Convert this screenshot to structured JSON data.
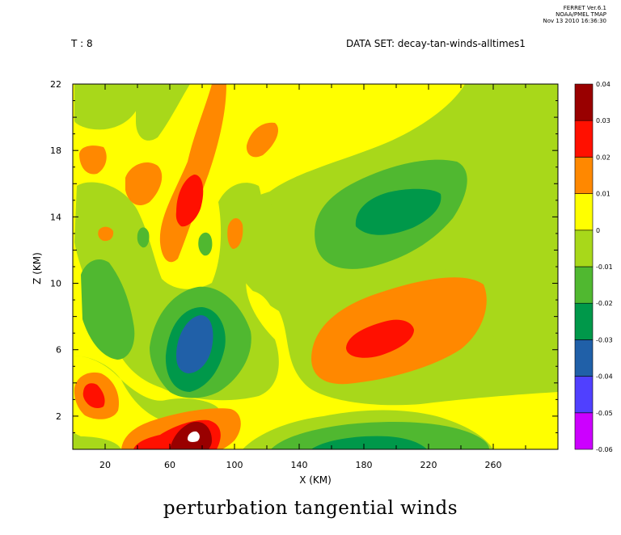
{
  "stamp": {
    "line1": "FERRET Ver.6.1",
    "line2": "NOAA/PMEL TMAP",
    "line3": "Nov 13 2010 16:36:30"
  },
  "header": {
    "time_label": "T : 8",
    "dataset_label": "DATA SET: decay-tan-winds-alltimes1"
  },
  "chart_data": {
    "type": "heatmap",
    "title": "perturbation tangential winds",
    "xlabel": "X (KM)",
    "ylabel": "Z (KM)",
    "xlim": [
      0,
      300
    ],
    "ylim": [
      0,
      22
    ],
    "xticks": [
      20,
      60,
      100,
      140,
      180,
      220,
      260
    ],
    "yticks": [
      2,
      6,
      10,
      14,
      18,
      22
    ],
    "colorbar": {
      "levels": [
        -0.06,
        -0.05,
        -0.04,
        -0.03,
        -0.02,
        -0.01,
        0,
        0.01,
        0.02,
        0.03,
        0.04
      ],
      "labels": [
        "-0.06",
        "-0.05",
        "-0.04",
        "-0.03",
        "-0.02",
        "-0.01",
        "0",
        "0.01",
        "0.02",
        "0.03",
        "0.04"
      ],
      "colors": [
        "#cc00ff",
        "#5040ff",
        "#2060a8",
        "#00984a",
        "#50b830",
        "#a8d81a",
        "#ffff00",
        "#ff8800",
        "#ff1000",
        "#990000"
      ]
    },
    "background_color": "#a8d81a",
    "features": [
      {
        "name": "upper-green-trough",
        "level": -0.02,
        "x": [
          150,
          250
        ],
        "z": [
          11,
          17
        ]
      },
      {
        "name": "upper-green-core",
        "level": -0.03,
        "x": [
          170,
          230
        ],
        "z": [
          13,
          16
        ]
      },
      {
        "name": "mid-orange-max",
        "level": 0.02,
        "x": [
          145,
          255
        ],
        "z": [
          4,
          11
        ]
      },
      {
        "name": "mid-red-core",
        "level": 0.03,
        "x": [
          168,
          210
        ],
        "z": [
          5.5,
          7.8
        ]
      },
      {
        "name": "left-blue-min",
        "level": -0.03,
        "x": [
          60,
          78
        ],
        "z": [
          4.5,
          8.5
        ]
      },
      {
        "name": "surface-dark-red-max",
        "level": 0.04,
        "x": [
          60,
          85
        ],
        "z": [
          0,
          1.5
        ]
      },
      {
        "name": "surface-green-min",
        "level": -0.03,
        "x": [
          150,
          215
        ],
        "z": [
          0,
          1.2
        ]
      },
      {
        "name": "left-red-cell",
        "level": 0.03,
        "x": [
          5,
          18
        ],
        "z": [
          2.5,
          4.5
        ]
      },
      {
        "name": "upper-red-cell",
        "level": 0.03,
        "x": [
          65,
          80
        ],
        "z": [
          13.5,
          16.5
        ]
      }
    ]
  }
}
